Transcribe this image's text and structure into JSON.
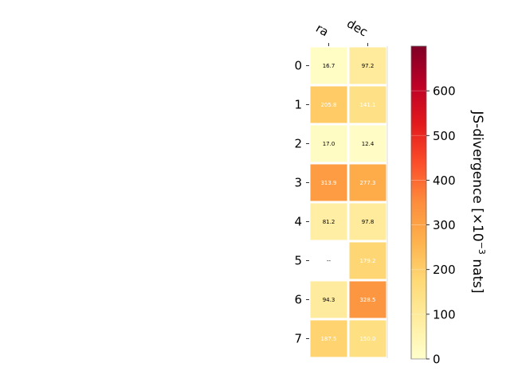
{
  "chart_data": {
    "type": "heatmap",
    "columns": [
      "ra",
      "dec"
    ],
    "rows": [
      "0",
      "1",
      "2",
      "3",
      "4",
      "5",
      "6",
      "7"
    ],
    "values": [
      [
        16.7,
        97.2
      ],
      [
        205.8,
        141.1
      ],
      [
        17.0,
        12.4
      ],
      [
        313.9,
        277.3
      ],
      [
        81.2,
        97.8
      ],
      [
        null,
        179.2
      ],
      [
        94.3,
        328.5
      ],
      [
        187.5,
        150.0
      ]
    ],
    "cell_labels": [
      [
        "16.7",
        "97.2"
      ],
      [
        "205.8",
        "141.1"
      ],
      [
        "17.0",
        "12.4"
      ],
      [
        "313.9",
        "277.3"
      ],
      [
        "81.2",
        "97.8"
      ],
      [
        "--",
        "179.2"
      ],
      [
        "94.3",
        "328.5"
      ],
      [
        "187.5",
        "150.0"
      ]
    ],
    "colormap": "YlOrRd",
    "vmin": 0,
    "vmax": 700,
    "colorbar": {
      "ticks": [
        0,
        100,
        200,
        300,
        400,
        500,
        600
      ],
      "tick_labels": [
        "0",
        "100",
        "200",
        "300",
        "400",
        "500",
        "600"
      ],
      "label_text": "JS-divergence [×10",
      "label_sup": "−3",
      "label_unit": " nats]"
    },
    "grid": false
  }
}
